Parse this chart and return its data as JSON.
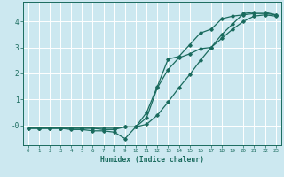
{
  "xlabel": "Humidex (Indice chaleur)",
  "bg_color": "#cce8f0",
  "grid_color": "#ffffff",
  "line_color": "#1a6b5e",
  "xlim": [
    -0.5,
    23.5
  ],
  "ylim": [
    -0.75,
    4.75
  ],
  "xticks": [
    0,
    1,
    2,
    3,
    4,
    5,
    6,
    7,
    8,
    9,
    10,
    11,
    12,
    13,
    14,
    15,
    16,
    17,
    18,
    19,
    20,
    21,
    22,
    23
  ],
  "yticks": [
    0,
    1,
    2,
    3,
    4
  ],
  "ytick_labels": [
    "-0",
    "1",
    "2",
    "3",
    "4"
  ],
  "line1_x": [
    0,
    1,
    2,
    3,
    4,
    5,
    6,
    7,
    8,
    9,
    10,
    11,
    12,
    13,
    14,
    15,
    16,
    17,
    18,
    19,
    20,
    21,
    22,
    23
  ],
  "line1_y": [
    -0.1,
    -0.1,
    -0.1,
    -0.1,
    -0.1,
    -0.1,
    -0.1,
    -0.15,
    -0.15,
    -0.05,
    -0.05,
    0.3,
    1.45,
    2.15,
    2.6,
    2.75,
    2.95,
    3.0,
    3.5,
    3.9,
    4.3,
    4.35,
    4.35,
    4.25
  ],
  "line2_x": [
    0,
    1,
    2,
    3,
    4,
    5,
    6,
    7,
    8,
    9,
    10,
    11,
    12,
    13,
    14,
    15,
    16,
    17,
    18,
    19,
    20,
    21,
    22,
    23
  ],
  "line2_y": [
    -0.1,
    -0.1,
    -0.1,
    -0.1,
    -0.1,
    -0.1,
    -0.1,
    -0.1,
    -0.1,
    -0.05,
    -0.05,
    0.5,
    1.5,
    2.55,
    2.65,
    3.1,
    3.55,
    3.7,
    4.1,
    4.2,
    4.25,
    4.3,
    4.3,
    4.25
  ],
  "line3_x": [
    0,
    1,
    2,
    3,
    4,
    5,
    6,
    7,
    8,
    9,
    10,
    11,
    12,
    13,
    14,
    15,
    16,
    17,
    18,
    19,
    20,
    21,
    22,
    23
  ],
  "line3_y": [
    -0.1,
    -0.1,
    -0.1,
    -0.1,
    -0.15,
    -0.15,
    -0.2,
    -0.2,
    -0.25,
    -0.5,
    -0.05,
    0.05,
    0.4,
    0.9,
    1.45,
    1.95,
    2.5,
    3.0,
    3.35,
    3.7,
    4.0,
    4.2,
    4.25,
    4.2
  ]
}
